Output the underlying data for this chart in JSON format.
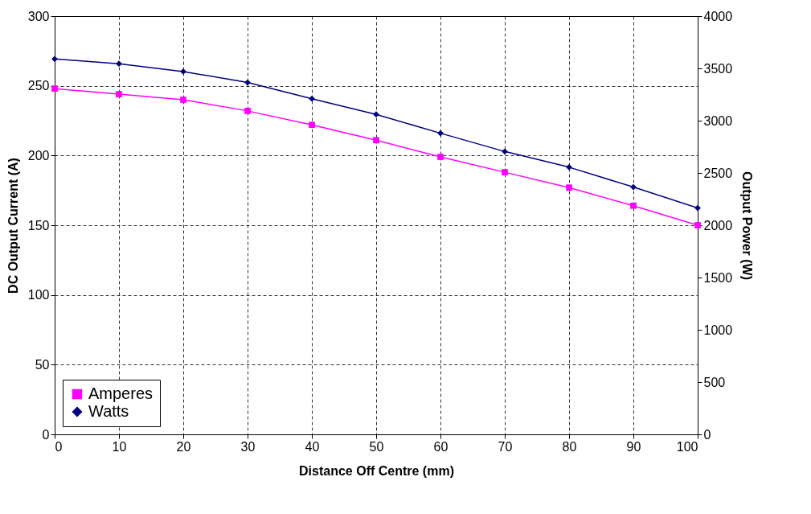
{
  "chart_data": {
    "type": "line",
    "xlabel": "Distance Off Centre (mm)",
    "ylabel": "DC Output Current (A)",
    "y2label": "Output Power (W)",
    "x": [
      0,
      10,
      20,
      30,
      40,
      50,
      60,
      70,
      80,
      90,
      100
    ],
    "series": [
      {
        "name": "Amperes",
        "color": "#ff00ff",
        "marker": "square",
        "values": [
          248,
          244,
          240,
          232,
          222,
          211,
          199,
          188,
          177,
          164,
          150
        ]
      },
      {
        "name": "Watts",
        "color": "#000080",
        "marker": "diamond",
        "axis": "y2",
        "values": [
          3590,
          3545,
          3470,
          3365,
          3210,
          3060,
          2880,
          2705,
          2555,
          2365,
          2165
        ]
      }
    ],
    "xlim": [
      0,
      100
    ],
    "xticks": [
      0,
      10,
      20,
      30,
      40,
      50,
      60,
      70,
      80,
      90,
      100
    ],
    "ylim": [
      0,
      300
    ],
    "yticks": [
      0,
      50,
      100,
      150,
      200,
      250,
      300
    ],
    "y2lim": [
      0,
      4000
    ],
    "y2ticks": [
      0,
      500,
      1000,
      1500,
      2000,
      2500,
      3000,
      3500,
      4000
    ],
    "grid": true,
    "legend": "bottom left",
    "line_style": "solid"
  }
}
